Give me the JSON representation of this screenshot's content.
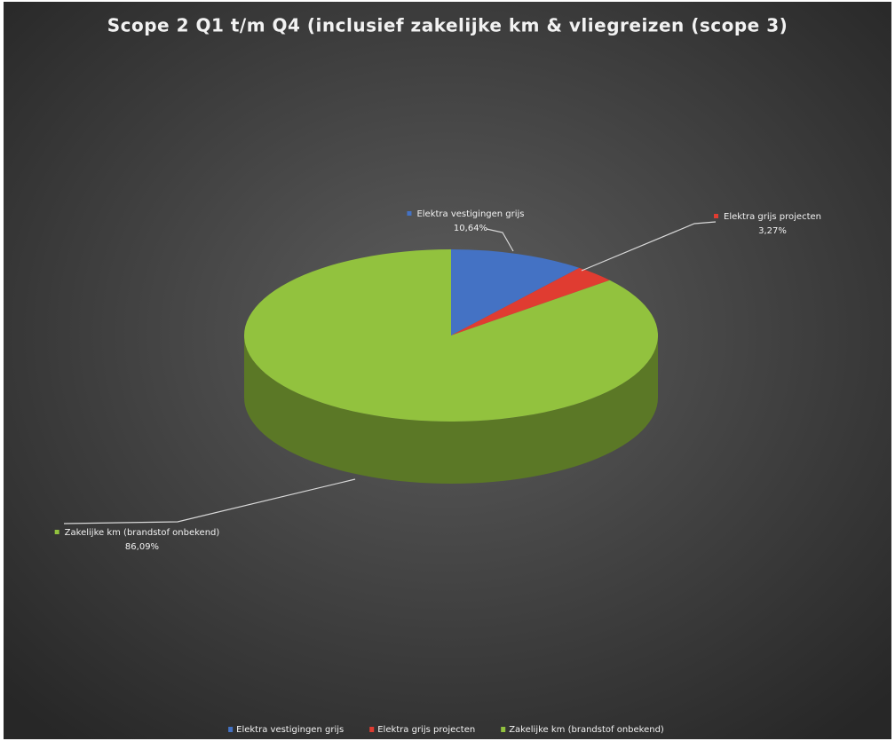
{
  "chart_data": {
    "type": "pie",
    "title": "Scope 2 Q1 t/m Q4 (inclusief zakelijke km & vliegreizen (scope 3)",
    "categories": [
      "Elektra vestigingen grijs",
      "Elektra grijs projecten",
      "Zakelijke km (brandstof onbekend)"
    ],
    "values": [
      10.64,
      3.27,
      86.09
    ],
    "value_labels": [
      "10,64%",
      "3,27%",
      "86,09%"
    ],
    "colors": [
      "#4472c4",
      "#e03c31",
      "#92c23e"
    ],
    "legend": "bottom"
  }
}
